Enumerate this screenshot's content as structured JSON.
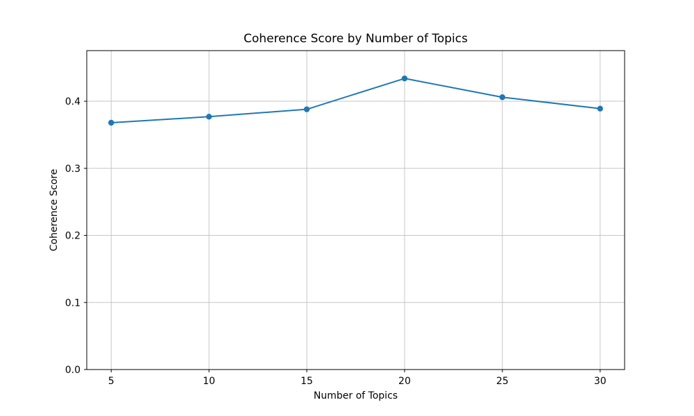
{
  "chart_data": {
    "type": "line",
    "title": "Coherence Score by Number of Topics",
    "xlabel": "Number of Topics",
    "ylabel": "Coherence Score",
    "x": [
      5,
      10,
      15,
      20,
      25,
      30
    ],
    "values": [
      0.368,
      0.377,
      0.388,
      0.434,
      0.406,
      0.389
    ],
    "series": [
      {
        "name": "Coherence Score",
        "values": [
          0.368,
          0.377,
          0.388,
          0.434,
          0.406,
          0.389
        ]
      }
    ],
    "xticks": [
      "5",
      "10",
      "15",
      "20",
      "25",
      "30"
    ],
    "yticks": [
      "0.0",
      "0.1",
      "0.2",
      "0.3",
      "0.4"
    ],
    "xlim": [
      3.75,
      31.25
    ],
    "ylim": [
      0.0,
      0.4755
    ],
    "grid": true,
    "legend_position": "none",
    "colors": {
      "line": "#1f77b4",
      "marker": "#1f77b4",
      "grid": "#c6c6c6",
      "spine": "#000000",
      "background": "#ffffff"
    }
  }
}
